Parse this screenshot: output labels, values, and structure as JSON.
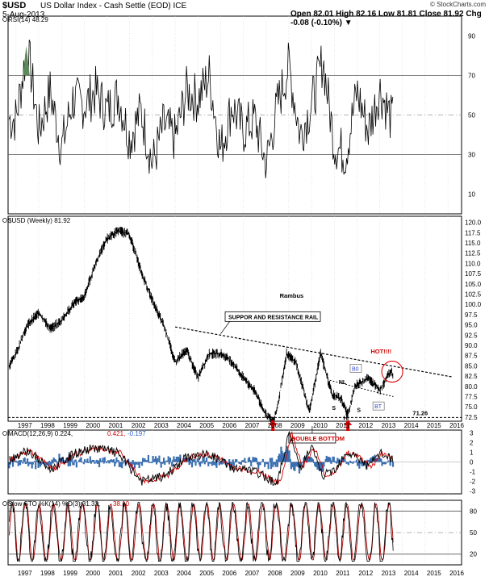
{
  "header": {
    "symbol": "$USD",
    "name": "US Dollar Index - Cash Settle (EOD) ICE",
    "date": "5-Aug-2013",
    "quote": "Open 82.01  High 82.16  Low 81.81  Close 81.92  Chg -0.08 (-0.10%) ▼",
    "credit": "© StockCharts.com"
  },
  "chart_data": [
    {
      "type": "line",
      "panel": "rsi",
      "legend": "RSI(14) 48.29",
      "yticks": [
        10,
        30,
        50,
        70,
        90
      ],
      "ylim": [
        0,
        100
      ],
      "reference_lines": [
        30,
        50,
        70
      ],
      "x": [
        1997.0,
        1997.5,
        1998.0,
        1998.5,
        1999.0,
        1999.5,
        2000.0,
        2000.5,
        2001.0,
        2001.5,
        2002.0,
        2002.5,
        2003.0,
        2003.5,
        2004.0,
        2004.5,
        2005.0,
        2005.5,
        2006.0,
        2006.5,
        2007.0,
        2007.5,
        2008.0,
        2008.5,
        2009.0,
        2009.5,
        2010.0,
        2010.5,
        2011.0,
        2011.5,
        2012.0,
        2012.5,
        2013.0,
        2013.5
      ],
      "values": [
        48,
        85,
        42,
        62,
        33,
        58,
        55,
        62,
        52,
        60,
        38,
        52,
        25,
        45,
        38,
        62,
        58,
        70,
        32,
        55,
        42,
        48,
        25,
        55,
        75,
        40,
        55,
        78,
        35,
        30,
        62,
        42,
        63,
        48
      ]
    },
    {
      "type": "line",
      "panel": "price",
      "legend": "$USD (Weekly) 81.92",
      "yticks": [
        72.5,
        75.0,
        77.5,
        80.0,
        82.5,
        85.0,
        87.5,
        90.0,
        92.5,
        95.0,
        97.5,
        100.0,
        102.5,
        105.0,
        107.5,
        110.0,
        112.5,
        115.0,
        117.5,
        120.0
      ],
      "ylim": [
        71.5,
        121.5
      ],
      "x": [
        1996.7,
        1997.0,
        1997.5,
        1998.0,
        1998.5,
        1999.0,
        1999.5,
        2000.0,
        2000.5,
        2001.0,
        2001.5,
        2002.0,
        2002.5,
        2003.0,
        2003.5,
        2004.0,
        2004.5,
        2005.0,
        2005.5,
        2006.0,
        2006.5,
        2007.0,
        2007.5,
        2008.0,
        2008.3,
        2008.5,
        2008.9,
        2009.3,
        2009.9,
        2010.4,
        2010.9,
        2011.3,
        2011.6,
        2011.9,
        2012.5,
        2013.0,
        2013.5,
        2013.6
      ],
      "values": [
        85,
        88,
        95,
        98,
        94,
        96,
        100,
        102,
        110,
        116,
        118,
        117,
        108,
        101,
        95,
        86,
        89,
        82,
        88,
        88,
        86,
        82,
        79,
        73,
        71.5,
        75,
        88,
        86,
        74,
        88,
        78,
        77,
        73,
        80,
        82,
        79,
        84,
        81.92
      ],
      "annotations": [
        "Rambus",
        "SUPPOR AND RESISTANCE RAIL",
        "HOT!!!!",
        "B0",
        "NL",
        "S",
        "H",
        "S",
        "BT",
        "DOUBLE BOTTOM",
        "71.26"
      ]
    },
    {
      "type": "line",
      "panel": "macd",
      "legend_prefix": "MACD(12,26,9) 0.224,",
      "legend_signal": "0.421,",
      "legend_hist": "-0.197",
      "yticks": [
        -3,
        -2,
        -1,
        0,
        1,
        2,
        3
      ],
      "ylim": [
        -3.3,
        3.3
      ],
      "x": [
        1996.7,
        1997.5,
        1998.5,
        1999.5,
        2000.5,
        2001.5,
        2002.5,
        2003.5,
        2004.5,
        2005.5,
        2006.5,
        2007.5,
        2008.5,
        2009.0,
        2009.5,
        2010.0,
        2010.5,
        2011.0,
        2011.5,
        2012.0,
        2012.5,
        2013.0,
        2013.6
      ],
      "values": [
        0.3,
        1.2,
        -0.8,
        0.8,
        1.5,
        0.9,
        -2.0,
        -1.5,
        0.5,
        0.8,
        -0.6,
        -1.0,
        -2.2,
        3.0,
        -0.5,
        1.5,
        -1.5,
        -0.8,
        1.0,
        0.5,
        -0.5,
        0.9,
        0.2
      ]
    },
    {
      "type": "line",
      "panel": "sto",
      "legend_prefix": "Slow STO %K(14) %D(3) 31.32,",
      "legend_d": "38.10",
      "yticks": [
        20,
        50,
        80
      ],
      "ylim": [
        5,
        95
      ],
      "reference_lines": [
        20,
        50,
        80
      ]
    },
    {
      "type": "axis",
      "panel": "xaxis",
      "x_ticks": [
        "1997",
        "1998",
        "1999",
        "2000",
        "2001",
        "2002",
        "2003",
        "2004",
        "2005",
        "2006",
        "2007",
        "2008",
        "2009",
        "2010",
        "2011",
        "2012",
        "2013",
        "2014",
        "2015",
        "2016"
      ]
    }
  ]
}
